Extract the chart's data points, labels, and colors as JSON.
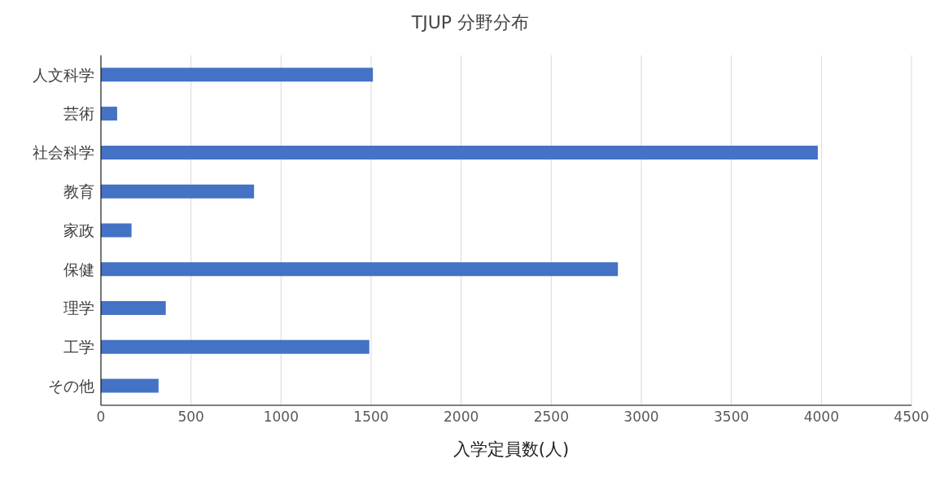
{
  "chart_data": {
    "type": "bar",
    "orientation": "horizontal",
    "title": "TJUP 分野分布",
    "xlabel": "入学定員数(人)",
    "categories": [
      "人文科学",
      "芸術",
      "社会科学",
      "教育",
      "家政",
      "保健",
      "理学",
      "工学",
      "その他"
    ],
    "values": [
      1510,
      90,
      3980,
      850,
      170,
      2870,
      360,
      1490,
      320
    ],
    "color": "#4472c4",
    "xlim": [
      0,
      4500
    ],
    "xticks": [
      0,
      500,
      1000,
      1500,
      2000,
      2500,
      3000,
      3500,
      4000,
      4500
    ],
    "grid": "x"
  }
}
